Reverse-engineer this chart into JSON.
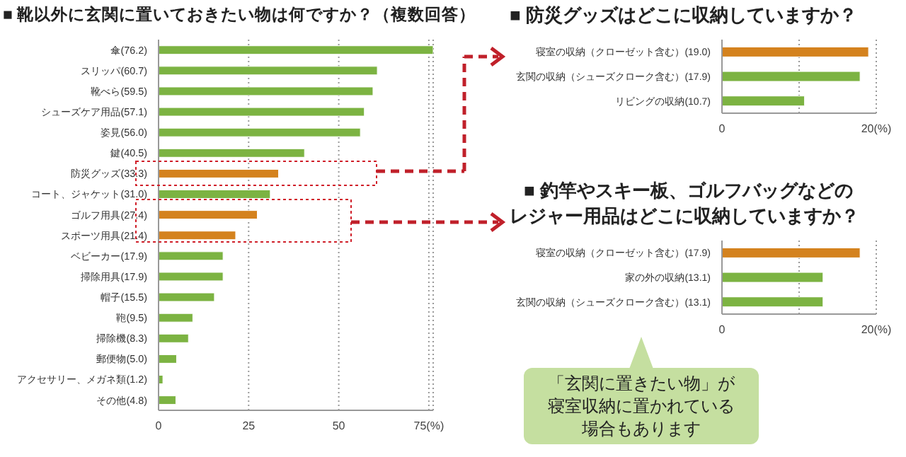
{
  "chart_data": [
    {
      "type": "bar",
      "orientation": "horizontal",
      "title": "■ 靴以外に玄関に置いておきたい物は何ですか？（複数回答）",
      "categories": [
        "傘(76.2)",
        "スリッパ(60.7)",
        "靴べら(59.5)",
        "シューズケア用品(57.1)",
        "姿見(56.0)",
        "鍵(40.5)",
        "防災グッズ(33.3)",
        "コート、ジャケット(31.0)",
        "ゴルフ用具(27.4)",
        "スポーツ用具(21.4)",
        "ベビーカー(17.9)",
        "掃除用具(17.9)",
        "帽子(15.5)",
        "鞄(9.5)",
        "掃除機(8.3)",
        "郵便物(5.0)",
        "アクセサリー、メガネ類(1.2)",
        "その他(4.8)"
      ],
      "values": [
        76.2,
        60.7,
        59.5,
        57.1,
        56.0,
        40.5,
        33.3,
        31.0,
        27.4,
        21.4,
        17.9,
        17.9,
        15.5,
        9.5,
        8.3,
        5.0,
        1.2,
        4.8
      ],
      "colors": [
        "#7cb342",
        "#7cb342",
        "#7cb342",
        "#7cb342",
        "#7cb342",
        "#7cb342",
        "#d4821e",
        "#7cb342",
        "#d4821e",
        "#d4821e",
        "#7cb342",
        "#7cb342",
        "#7cb342",
        "#7cb342",
        "#7cb342",
        "#7cb342",
        "#7cb342",
        "#7cb342"
      ],
      "xlim": [
        0,
        76.2
      ],
      "xticks": [
        0,
        25,
        50,
        {
          "value": 75,
          "label": "75(%)"
        }
      ],
      "grid": "x"
    },
    {
      "type": "bar",
      "orientation": "horizontal",
      "title": "■ 防災グッズはどこに収納していますか？",
      "categories": [
        "寝室の収納（クローゼット含む）(19.0)",
        "玄関の収納（シューズクローク含む）(17.9)",
        "リビングの収納(10.7)"
      ],
      "values": [
        19.0,
        17.9,
        10.7
      ],
      "colors": [
        "#d4821e",
        "#7cb342",
        "#7cb342"
      ],
      "xlim": [
        0,
        20
      ],
      "xticks": [
        0,
        {
          "value": 10,
          "label": null
        },
        {
          "value": 20,
          "label": "20(%)"
        }
      ],
      "grid": "x"
    },
    {
      "type": "bar",
      "orientation": "horizontal",
      "title": "■ 釣竿やスキー板、ゴルフバッグなどのレジャー用品はどこに収納していますか？",
      "categories": [
        "寝室の収納（クローゼット含む）(17.9)",
        "家の外の収納(13.1)",
        "玄関の収納（シューズクローク含む）(13.1)"
      ],
      "values": [
        17.9,
        13.1,
        13.1
      ],
      "colors": [
        "#d4821e",
        "#7cb342",
        "#7cb342"
      ],
      "xlim": [
        0,
        20
      ],
      "xticks": [
        0,
        {
          "value": 10,
          "label": null
        },
        {
          "value": 20,
          "label": "20(%)"
        }
      ],
      "grid": "x",
      "annotations": [
        "「玄関に置きたい物」が寝室収納に置かれている場合もあります"
      ]
    }
  ]
}
